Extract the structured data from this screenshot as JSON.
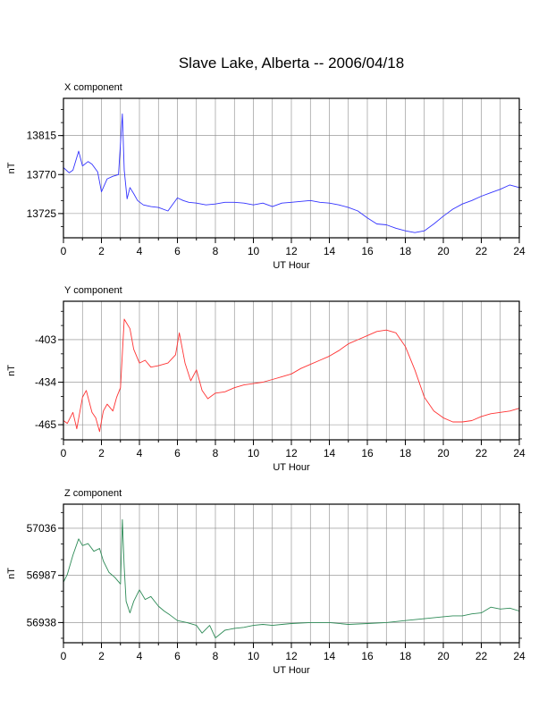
{
  "title": "Slave Lake, Alberta -- 2006/04/18",
  "colors": {
    "x_series": "#3333ff",
    "y_series": "#ff3333",
    "z_series": "#2e8b57",
    "grid": "#888888",
    "frame": "#000000"
  },
  "chart_data": [
    {
      "type": "line",
      "title": "X component",
      "xlabel": "UT Hour",
      "ylabel": "nT",
      "xlim": [
        0,
        24
      ],
      "ylim": [
        13697,
        13858
      ],
      "xticks": [
        0,
        2,
        4,
        6,
        8,
        10,
        12,
        14,
        16,
        18,
        20,
        22,
        24
      ],
      "yticks": [
        13725,
        13770,
        13815
      ],
      "grid": true,
      "series": [
        {
          "x": [
            0,
            0.3,
            0.5,
            0.8,
            1.0,
            1.3,
            1.5,
            1.8,
            2.0,
            2.3,
            2.6,
            2.9,
            3.1,
            3.2,
            3.35,
            3.5,
            3.7,
            3.9,
            4.2,
            4.6,
            5.0,
            5.5,
            6.0,
            6.3,
            6.6,
            7.0,
            7.5,
            8.0,
            8.5,
            9.0,
            9.5,
            10.0,
            10.5,
            11.0,
            11.5,
            12.0,
            12.5,
            13.0,
            13.5,
            14.0,
            14.5,
            15.0,
            15.5,
            16.0,
            16.5,
            17.0,
            17.5,
            18.0,
            18.5,
            19.0,
            19.5,
            20.0,
            20.5,
            21.0,
            21.5,
            22.0,
            22.5,
            23.0,
            23.5,
            24.0
          ],
          "y": [
            13778,
            13772,
            13775,
            13797,
            13780,
            13785,
            13782,
            13773,
            13750,
            13765,
            13768,
            13770,
            13840,
            13775,
            13742,
            13755,
            13748,
            13740,
            13735,
            13733,
            13732,
            13728,
            13743,
            13740,
            13738,
            13737,
            13735,
            13736,
            13738,
            13738,
            13737,
            13735,
            13737,
            13733,
            13737,
            13738,
            13739,
            13740,
            13738,
            13737,
            13735,
            13732,
            13728,
            13720,
            13713,
            13712,
            13708,
            13705,
            13703,
            13705,
            13713,
            13722,
            13730,
            13736,
            13740,
            13745,
            13749,
            13753,
            13758,
            13755
          ]
        }
      ]
    },
    {
      "type": "line",
      "title": "Y component",
      "xlabel": "UT Hour",
      "ylabel": "nT",
      "xlim": [
        0,
        24
      ],
      "ylim": [
        -476,
        -375
      ],
      "xticks": [
        0,
        2,
        4,
        6,
        8,
        10,
        12,
        14,
        16,
        18,
        20,
        22,
        24
      ],
      "yticks": [
        -465,
        -434,
        -403
      ],
      "grid": true,
      "series": [
        {
          "x": [
            0,
            0.2,
            0.5,
            0.7,
            1.0,
            1.2,
            1.5,
            1.7,
            1.9,
            2.1,
            2.3,
            2.6,
            2.8,
            3.0,
            3.2,
            3.5,
            3.7,
            4.0,
            4.3,
            4.6,
            5.0,
            5.5,
            5.9,
            6.1,
            6.4,
            6.7,
            7.0,
            7.3,
            7.6,
            8.0,
            8.5,
            9.0,
            9.5,
            10.0,
            10.5,
            11.0,
            11.5,
            12.0,
            12.5,
            13.0,
            13.5,
            14.0,
            14.5,
            15.0,
            15.5,
            16.0,
            16.5,
            17.0,
            17.5,
            18.0,
            18.5,
            19.0,
            19.5,
            20.0,
            20.5,
            21.0,
            21.5,
            22.0,
            22.5,
            23.0,
            23.5,
            24.0
          ],
          "y": [
            -462,
            -464,
            -456,
            -468,
            -445,
            -440,
            -456,
            -460,
            -470,
            -455,
            -450,
            -455,
            -445,
            -438,
            -388,
            -395,
            -410,
            -420,
            -418,
            -423,
            -422,
            -420,
            -414,
            -398,
            -420,
            -433,
            -425,
            -440,
            -446,
            -442,
            -441,
            -438,
            -436,
            -435,
            -434,
            -432,
            -430,
            -428,
            -424,
            -421,
            -418,
            -415,
            -411,
            -406,
            -403,
            -400,
            -397,
            -396,
            -398,
            -408,
            -425,
            -445,
            -455,
            -460,
            -463,
            -463,
            -462,
            -459,
            -457,
            -456,
            -455,
            -453
          ]
        }
      ]
    },
    {
      "type": "line",
      "title": "Z component",
      "xlabel": "UT Hour",
      "ylabel": "nT",
      "xlim": [
        0,
        24
      ],
      "ylim": [
        56917,
        57061
      ],
      "xticks": [
        0,
        2,
        4,
        6,
        8,
        10,
        12,
        14,
        16,
        18,
        20,
        22,
        24
      ],
      "yticks": [
        56938,
        56987,
        57036
      ],
      "grid": true,
      "series": [
        {
          "x": [
            0,
            0.2,
            0.5,
            0.8,
            1.0,
            1.3,
            1.6,
            1.9,
            2.1,
            2.4,
            2.7,
            3.0,
            3.1,
            3.2,
            3.3,
            3.5,
            3.7,
            4.0,
            4.3,
            4.6,
            5.0,
            5.3,
            5.6,
            6.0,
            6.5,
            7.0,
            7.3,
            7.7,
            8.0,
            8.5,
            9.0,
            9.5,
            10.0,
            10.5,
            11.0,
            11.5,
            12.0,
            13.0,
            14.0,
            15.0,
            16.0,
            17.0,
            18.0,
            19.0,
            20.0,
            20.5,
            21.0,
            21.5,
            22.0,
            22.5,
            23.0,
            23.5,
            24.0
          ],
          "y": [
            56980,
            56988,
            57008,
            57025,
            57018,
            57020,
            57012,
            57015,
            57002,
            56990,
            56985,
            56978,
            57045,
            56995,
            56960,
            56948,
            56960,
            56972,
            56962,
            56965,
            56955,
            56950,
            56946,
            56940,
            56938,
            56935,
            56927,
            56935,
            56922,
            56930,
            56932,
            56933,
            56935,
            56936,
            56935,
            56936,
            56937,
            56938,
            56938,
            56936,
            56937,
            56938,
            56940,
            56942,
            56944,
            56945,
            56945,
            56947,
            56948,
            56954,
            56952,
            56953,
            56950
          ]
        }
      ]
    }
  ]
}
